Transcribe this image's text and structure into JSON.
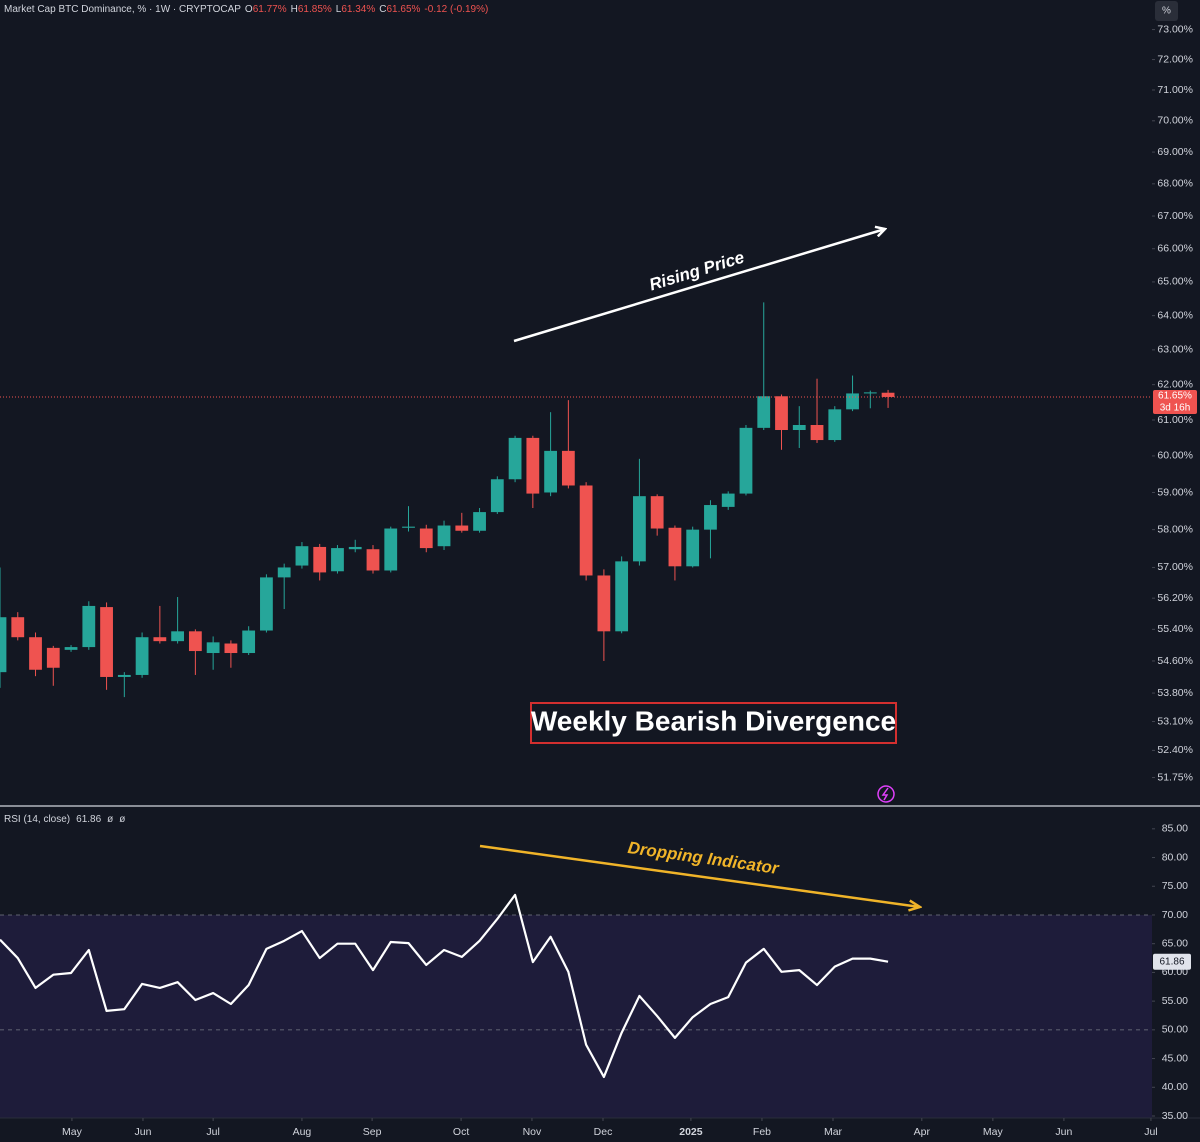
{
  "chart_data": [
    {
      "type": "candlestick",
      "title": "Market Cap BTC Dominance, % · 1W · CRYPTOCAP",
      "legend_keys": [
        "O",
        "H",
        "L",
        "C"
      ],
      "legend_labels": [
        "61.77%",
        "61.85%",
        "61.34%",
        "61.65%"
      ],
      "change": "-0.12 (-0.19%)",
      "countdown": "3d 16h",
      "scale_button": "%",
      "annotations": [
        "Rising Price",
        "Weekly Bearish Divergence"
      ],
      "log_scale": true,
      "grid": false,
      "up_color": "#26a69a",
      "down_color": "#ef5350",
      "categories": [
        null,
        null,
        null,
        null,
        null,
        null,
        null,
        null,
        null,
        null,
        null,
        null,
        null,
        null,
        null,
        null,
        null,
        null,
        null,
        null,
        null,
        null,
        null,
        null,
        null,
        null,
        null,
        null,
        null,
        null,
        null,
        null,
        null,
        null,
        null,
        null,
        null,
        null,
        null,
        null,
        null,
        null,
        null,
        null,
        null,
        null,
        null,
        null,
        null,
        null,
        null
      ],
      "open": [
        54.32,
        55.71,
        55.2,
        54.93,
        54.88,
        54.95,
        55.97,
        54.2,
        54.25,
        55.2,
        55.1,
        55.35,
        54.8,
        55.04,
        54.8,
        55.37,
        56.74,
        57.05,
        57.54,
        56.9,
        57.48,
        57.48,
        56.92,
        58.05,
        58.03,
        57.56,
        58.11,
        57.97,
        58.47,
        59.36,
        60.5,
        59.0,
        60.14,
        59.19,
        56.79,
        55.35,
        57.16,
        58.9,
        58.05,
        57.03,
        58.0,
        58.61,
        58.97,
        60.78,
        61.67,
        60.72,
        60.86,
        60.44,
        61.3,
        61.75,
        61.77
      ],
      "high": [
        57.0,
        55.84,
        55.32,
        54.98,
        55.0,
        56.12,
        56.09,
        54.32,
        55.32,
        56.0,
        56.23,
        55.4,
        55.22,
        55.12,
        55.48,
        56.82,
        57.1,
        57.67,
        57.62,
        57.59,
        57.73,
        57.59,
        58.08,
        58.63,
        58.13,
        58.24,
        58.45,
        58.58,
        59.44,
        60.56,
        60.56,
        61.22,
        61.56,
        59.28,
        56.95,
        57.29,
        59.92,
        58.95,
        58.11,
        58.08,
        58.79,
        59.03,
        60.86,
        64.39,
        61.72,
        61.39,
        62.17,
        61.39,
        62.26,
        61.83,
        61.85
      ],
      "low": [
        53.93,
        55.12,
        54.22,
        53.98,
        54.83,
        54.88,
        53.88,
        53.7,
        54.18,
        55.04,
        55.04,
        54.25,
        54.38,
        54.43,
        54.75,
        55.32,
        55.92,
        56.97,
        56.66,
        56.84,
        57.4,
        56.84,
        56.87,
        57.95,
        57.4,
        57.46,
        57.92,
        57.92,
        58.42,
        59.28,
        58.58,
        58.9,
        59.11,
        56.66,
        54.6,
        55.3,
        57.05,
        57.84,
        56.66,
        57.0,
        57.24,
        58.53,
        58.92,
        60.72,
        60.17,
        60.22,
        60.36,
        60.39,
        61.25,
        61.33,
        61.34
      ],
      "close": [
        55.71,
        55.2,
        54.38,
        54.43,
        54.95,
        56.0,
        54.2,
        54.25,
        55.2,
        55.1,
        55.35,
        54.85,
        55.07,
        54.8,
        55.37,
        56.74,
        57.0,
        57.56,
        56.87,
        57.51,
        57.54,
        56.92,
        58.03,
        58.08,
        57.51,
        58.11,
        57.97,
        58.47,
        59.36,
        60.5,
        58.97,
        60.14,
        59.19,
        56.79,
        55.35,
        57.16,
        58.9,
        58.03,
        57.03,
        58.0,
        58.66,
        58.97,
        60.78,
        61.67,
        60.72,
        60.86,
        60.44,
        61.3,
        61.75,
        61.78,
        61.65
      ],
      "xlim": [
        0,
        64.86
      ],
      "xticks": [
        {
          "value": 4.05,
          "label": "May"
        },
        {
          "value": 8.05,
          "label": "Jun"
        },
        {
          "value": 12.0,
          "label": "Jul"
        },
        {
          "value": 17.0,
          "label": "Aug"
        },
        {
          "value": 20.95,
          "label": "Sep"
        },
        {
          "value": 25.96,
          "label": "Oct"
        },
        {
          "value": 29.95,
          "label": "Nov"
        },
        {
          "value": 33.95,
          "label": "Dec"
        },
        {
          "value": 38.9,
          "label": "2025"
        },
        {
          "value": 42.9,
          "label": "Feb"
        },
        {
          "value": 46.9,
          "label": "Mar"
        },
        {
          "value": 51.9,
          "label": "Apr"
        },
        {
          "value": 55.9,
          "label": "May"
        },
        {
          "value": 59.9,
          "label": "Jun"
        },
        {
          "value": 64.8,
          "label": "Jul"
        }
      ],
      "ylim": [
        51.1,
        74.0
      ],
      "yticks": [
        {
          "value": 73,
          "label": "73.00%"
        },
        {
          "value": 72,
          "label": "72.00%"
        },
        {
          "value": 71,
          "label": "71.00%"
        },
        {
          "value": 70,
          "label": "70.00%"
        },
        {
          "value": 69,
          "label": "69.00%"
        },
        {
          "value": 68,
          "label": "68.00%"
        },
        {
          "value": 67,
          "label": "67.00%"
        },
        {
          "value": 66,
          "label": "66.00%"
        },
        {
          "value": 65,
          "label": "65.00%"
        },
        {
          "value": 64,
          "label": "64.00%"
        },
        {
          "value": 63,
          "label": "63.00%"
        },
        {
          "value": 62,
          "label": "62.00%"
        },
        {
          "value": 61,
          "label": "61.00%"
        },
        {
          "value": 60,
          "label": "60.00%"
        },
        {
          "value": 59,
          "label": "59.00%"
        },
        {
          "value": 58,
          "label": "58.00%"
        },
        {
          "value": 57,
          "label": "57.00%"
        },
        {
          "value": 56.2,
          "label": "56.20%"
        },
        {
          "value": 55.4,
          "label": "55.40%"
        },
        {
          "value": 54.6,
          "label": "54.60%"
        },
        {
          "value": 53.8,
          "label": "53.80%"
        },
        {
          "value": 53.1,
          "label": "53.10%"
        },
        {
          "value": 52.4,
          "label": "52.40%"
        },
        {
          "value": 51.75,
          "label": "51.75%"
        }
      ]
    },
    {
      "type": "line",
      "title": "RSI (14, close)",
      "flags": [
        "ø",
        "ø"
      ],
      "annotations": [
        "Dropping Indicator"
      ],
      "grid": false,
      "bands": [
        30,
        70
      ],
      "midline": 50,
      "band_color": "#1e1c3a",
      "series": [
        {
          "name": "RSI",
          "color": "#ffffff",
          "values": [
            65.7,
            62.5,
            57.3,
            59.6,
            59.9,
            63.9,
            53.3,
            53.6,
            58.0,
            57.3,
            58.3,
            55.2,
            56.4,
            54.5,
            57.8,
            64.1,
            65.5,
            67.2,
            62.5,
            65.0,
            65.0,
            60.4,
            65.3,
            65.1,
            61.3,
            63.9,
            62.7,
            65.5,
            69.3,
            73.5,
            61.8,
            66.2,
            60.1,
            47.4,
            41.8,
            49.5,
            55.9,
            52.4,
            48.6,
            52.2,
            54.5,
            55.7,
            61.7,
            64.1,
            60.1,
            60.4,
            57.8,
            61.0,
            62.4,
            62.4,
            61.86
          ]
        }
      ],
      "ylim": [
        34.65,
        88.8
      ],
      "yticks": [
        {
          "value": 85,
          "label": "85.00"
        },
        {
          "value": 80,
          "label": "80.00"
        },
        {
          "value": 75,
          "label": "75.00"
        },
        {
          "value": 70,
          "label": "70.00"
        },
        {
          "value": 65,
          "label": "65.00"
        },
        {
          "value": 60,
          "label": "60.00"
        },
        {
          "value": 55,
          "label": "55.00"
        },
        {
          "value": 50,
          "label": "50.00"
        },
        {
          "value": 45,
          "label": "45.00"
        },
        {
          "value": 40,
          "label": "40.00"
        },
        {
          "value": 35,
          "label": "35.00"
        }
      ]
    }
  ]
}
